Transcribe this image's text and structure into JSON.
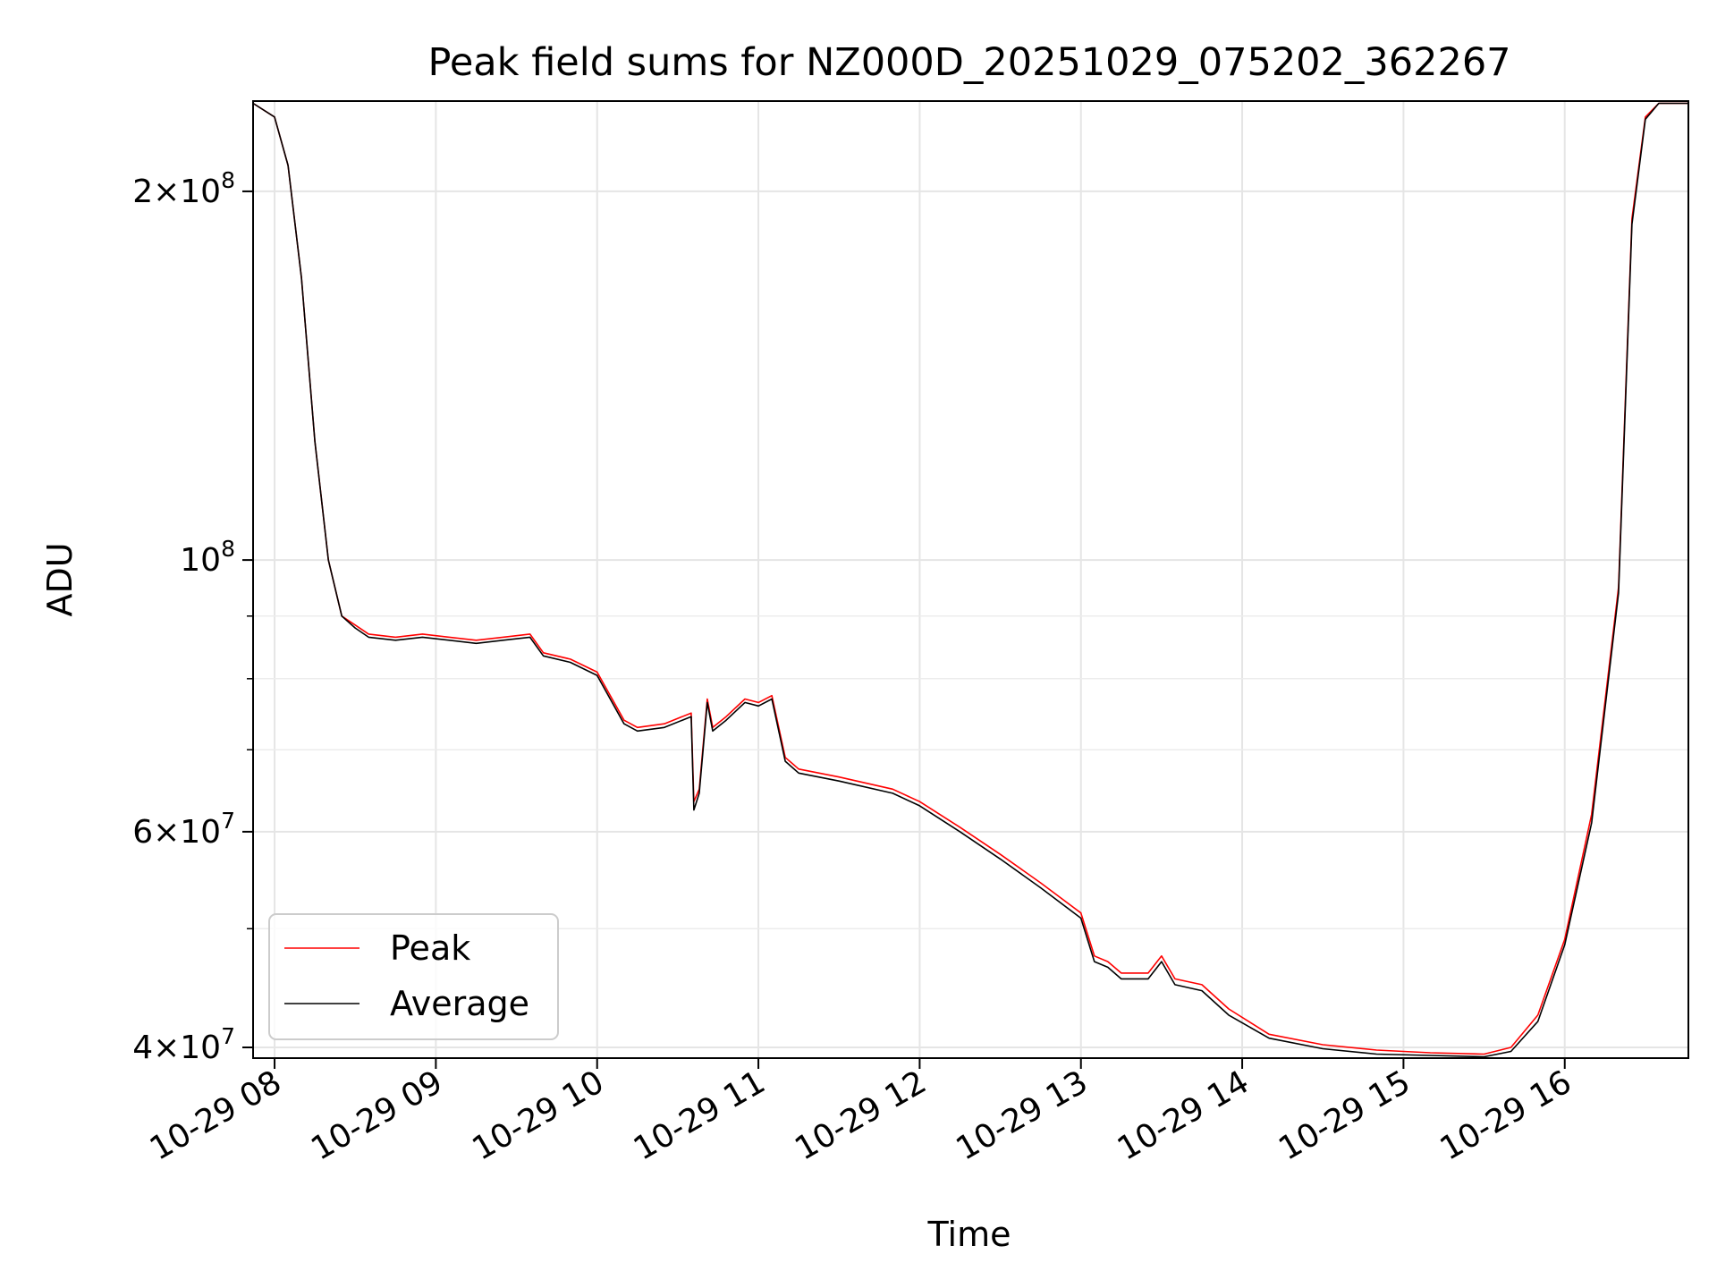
{
  "chart_data": {
    "type": "line",
    "title": "Peak field sums for NZ000D_20251029_075202_362267",
    "xlabel": "Time",
    "ylabel": "ADU",
    "yscale": "log",
    "xlim": [
      "2025-10-29 07:52",
      "2025-10-29 16:46"
    ],
    "ylim": [
      39200000,
      237000000
    ],
    "x_ticks": [
      "10-29 08",
      "10-29 09",
      "10-29 10",
      "10-29 11",
      "10-29 12",
      "10-29 13",
      "10-29 14",
      "10-29 15",
      "10-29 16"
    ],
    "y_ticks": [
      {
        "value": 40000000,
        "base": "4",
        "mult": "×",
        "pow_base": "10",
        "exp": "7"
      },
      {
        "value": 60000000,
        "base": "6",
        "mult": "×",
        "pow_base": "10",
        "exp": "7"
      },
      {
        "value": 100000000,
        "base": "",
        "mult": "",
        "pow_base": "10",
        "exp": "8"
      },
      {
        "value": 200000000,
        "base": "2",
        "mult": "×",
        "pow_base": "10",
        "exp": "8"
      }
    ],
    "grid": true,
    "legend": {
      "position": "lower-left"
    },
    "series": [
      {
        "name": "Peak",
        "color": "#ff0000",
        "x": [
          "2025-10-29 07:52",
          "2025-10-29 08:00",
          "2025-10-29 08:05",
          "2025-10-29 08:10",
          "2025-10-29 08:15",
          "2025-10-29 08:20",
          "2025-10-29 08:25",
          "2025-10-29 08:30",
          "2025-10-29 08:35",
          "2025-10-29 08:45",
          "2025-10-29 08:55",
          "2025-10-29 09:05",
          "2025-10-29 09:15",
          "2025-10-29 09:25",
          "2025-10-29 09:35",
          "2025-10-29 09:40",
          "2025-10-29 09:50",
          "2025-10-29 10:00",
          "2025-10-29 10:10",
          "2025-10-29 10:15",
          "2025-10-29 10:25",
          "2025-10-29 10:35",
          "2025-10-29 10:36",
          "2025-10-29 10:38",
          "2025-10-29 10:41",
          "2025-10-29 10:43",
          "2025-10-29 10:48",
          "2025-10-29 10:55",
          "2025-10-29 11:00",
          "2025-10-29 11:05",
          "2025-10-29 11:10",
          "2025-10-29 11:15",
          "2025-10-29 11:30",
          "2025-10-29 11:50",
          "2025-10-29 12:00",
          "2025-10-29 12:15",
          "2025-10-29 12:30",
          "2025-10-29 12:45",
          "2025-10-29 13:00",
          "2025-10-29 13:05",
          "2025-10-29 13:10",
          "2025-10-29 13:15",
          "2025-10-29 13:25",
          "2025-10-29 13:30",
          "2025-10-29 13:35",
          "2025-10-29 13:45",
          "2025-10-29 13:55",
          "2025-10-29 14:10",
          "2025-10-29 14:30",
          "2025-10-29 14:50",
          "2025-10-29 15:10",
          "2025-10-29 15:30",
          "2025-10-29 15:40",
          "2025-10-29 15:50",
          "2025-10-29 16:00",
          "2025-10-29 16:10",
          "2025-10-29 16:20",
          "2025-10-29 16:25",
          "2025-10-29 16:30",
          "2025-10-29 16:35",
          "2025-10-29 16:46"
        ],
        "values": [
          236000000,
          230000000,
          210000000,
          170000000,
          125000000,
          100000000,
          90000000,
          88500000,
          87000000,
          86500000,
          87000000,
          86500000,
          86000000,
          86500000,
          87000000,
          84000000,
          83000000,
          81000000,
          74000000,
          73000000,
          73500000,
          75000000,
          63500000,
          65000000,
          77000000,
          73000000,
          74500000,
          77000000,
          76500000,
          77500000,
          69000000,
          67500000,
          66500000,
          65000000,
          63500000,
          60500000,
          57500000,
          54500000,
          51500000,
          47500000,
          47000000,
          46000000,
          46000000,
          47500000,
          45500000,
          45000000,
          43000000,
          41000000,
          40200000,
          39800000,
          39600000,
          39500000,
          40000000,
          42500000,
          49000000,
          62000000,
          95000000,
          190000000,
          230000000,
          236000000,
          236000000
        ]
      },
      {
        "name": "Average",
        "color": "#000000",
        "x": [
          "2025-10-29 07:52",
          "2025-10-29 08:00",
          "2025-10-29 08:05",
          "2025-10-29 08:10",
          "2025-10-29 08:15",
          "2025-10-29 08:20",
          "2025-10-29 08:25",
          "2025-10-29 08:30",
          "2025-10-29 08:35",
          "2025-10-29 08:45",
          "2025-10-29 08:55",
          "2025-10-29 09:05",
          "2025-10-29 09:15",
          "2025-10-29 09:25",
          "2025-10-29 09:35",
          "2025-10-29 09:40",
          "2025-10-29 09:50",
          "2025-10-29 10:00",
          "2025-10-29 10:10",
          "2025-10-29 10:15",
          "2025-10-29 10:25",
          "2025-10-29 10:35",
          "2025-10-29 10:36",
          "2025-10-29 10:38",
          "2025-10-29 10:41",
          "2025-10-29 10:43",
          "2025-10-29 10:48",
          "2025-10-29 10:55",
          "2025-10-29 11:00",
          "2025-10-29 11:05",
          "2025-10-29 11:10",
          "2025-10-29 11:15",
          "2025-10-29 11:30",
          "2025-10-29 11:50",
          "2025-10-29 12:00",
          "2025-10-29 12:15",
          "2025-10-29 12:30",
          "2025-10-29 12:45",
          "2025-10-29 13:00",
          "2025-10-29 13:05",
          "2025-10-29 13:10",
          "2025-10-29 13:15",
          "2025-10-29 13:25",
          "2025-10-29 13:30",
          "2025-10-29 13:35",
          "2025-10-29 13:45",
          "2025-10-29 13:55",
          "2025-10-29 14:10",
          "2025-10-29 14:30",
          "2025-10-29 14:50",
          "2025-10-29 15:10",
          "2025-10-29 15:30",
          "2025-10-29 15:40",
          "2025-10-29 15:50",
          "2025-10-29 16:00",
          "2025-10-29 16:10",
          "2025-10-29 16:20",
          "2025-10-29 16:25",
          "2025-10-29 16:30",
          "2025-10-29 16:35",
          "2025-10-29 16:46"
        ],
        "values": [
          236000000,
          230000000,
          210000000,
          170000000,
          125000000,
          100000000,
          90000000,
          88000000,
          86500000,
          86000000,
          86500000,
          86000000,
          85500000,
          86000000,
          86500000,
          83500000,
          82500000,
          80500000,
          73500000,
          72500000,
          73000000,
          74500000,
          62500000,
          64500000,
          76500000,
          72500000,
          74000000,
          76500000,
          76000000,
          77000000,
          68500000,
          67000000,
          66000000,
          64500000,
          63000000,
          60000000,
          57000000,
          54000000,
          51000000,
          47000000,
          46500000,
          45500000,
          45500000,
          47000000,
          45000000,
          44500000,
          42500000,
          40700000,
          39900000,
          39500000,
          39400000,
          39300000,
          39700000,
          42000000,
          48500000,
          61000000,
          94000000,
          188000000,
          229000000,
          236000000,
          236000000
        ]
      }
    ]
  }
}
